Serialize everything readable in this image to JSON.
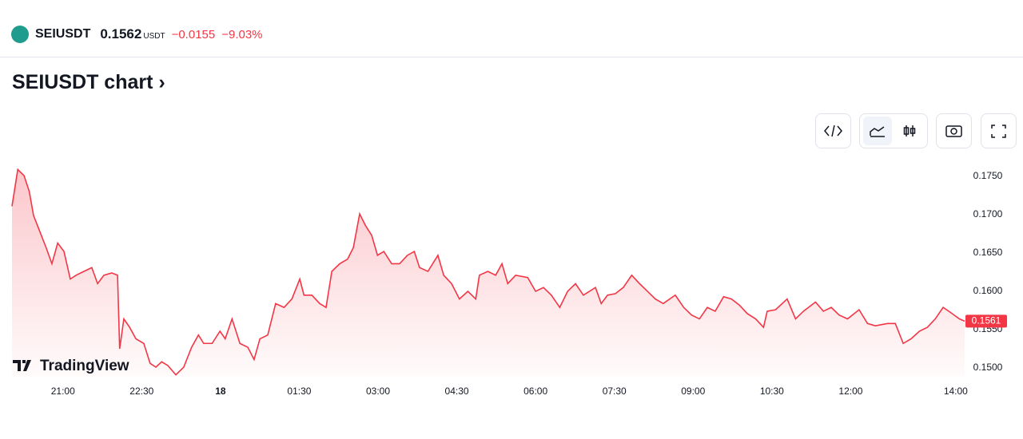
{
  "header": {
    "symbol": "SEIUSDT",
    "price": "0.1562",
    "currency": "USDT",
    "change": "−0.0155",
    "change_pct": "−9.03%"
  },
  "section_title": "SEIUSDT chart",
  "watermark": "TradingView",
  "chart_data": {
    "type": "area",
    "color": "#f23645",
    "x": [
      20.03,
      20.14,
      20.26,
      20.36,
      20.44,
      20.56,
      20.68,
      20.79,
      20.9,
      21.02,
      21.14,
      21.25,
      21.4,
      21.55,
      21.66,
      21.78,
      21.93,
      22.04,
      22.08,
      22.16,
      22.27,
      22.39,
      22.54,
      22.66,
      22.77,
      22.88,
      23.0,
      23.15,
      23.3,
      23.45,
      23.58,
      23.68,
      23.84,
      23.99,
      24.09,
      24.22,
      24.37,
      24.52,
      24.64,
      24.75,
      24.9,
      25.05,
      25.21,
      25.36,
      25.51,
      25.59,
      25.74,
      25.89,
      26.01,
      26.12,
      26.27,
      26.42,
      26.53,
      26.65,
      26.76,
      26.88,
      26.99,
      27.11,
      27.26,
      27.41,
      27.56,
      27.69,
      27.79,
      27.95,
      28.14,
      28.25,
      28.4,
      28.55,
      28.71,
      28.86,
      28.93,
      29.09,
      29.24,
      29.36,
      29.47,
      29.62,
      29.85,
      30.0,
      30.15,
      30.3,
      30.46,
      30.61,
      30.76,
      30.91,
      31.14,
      31.25,
      31.37,
      31.52,
      31.67,
      31.83,
      31.98,
      32.13,
      32.28,
      32.43,
      32.66,
      32.82,
      32.97,
      33.12,
      33.27,
      33.42,
      33.58,
      33.73,
      33.88,
      34.03,
      34.19,
      34.34,
      34.41,
      34.57,
      34.79,
      34.95,
      35.1,
      35.33,
      35.48,
      35.63,
      35.78,
      35.94,
      36.16,
      36.32,
      36.47,
      36.7,
      36.85,
      37.0,
      37.15,
      37.31,
      37.46,
      37.61,
      37.76,
      37.91,
      38.07,
      38.17
    ],
    "values": [
      0.1711,
      0.1759,
      0.1751,
      0.173,
      0.1699,
      0.1678,
      0.1657,
      0.1636,
      0.1663,
      0.1652,
      0.1616,
      0.1621,
      0.1626,
      0.1631,
      0.161,
      0.1621,
      0.1624,
      0.1621,
      0.1525,
      0.1564,
      0.1553,
      0.1538,
      0.1532,
      0.1506,
      0.1501,
      0.1508,
      0.1503,
      0.1491,
      0.1501,
      0.1527,
      0.1543,
      0.1532,
      0.1532,
      0.1548,
      0.1538,
      0.1564,
      0.1532,
      0.1527,
      0.1511,
      0.1538,
      0.1543,
      0.1584,
      0.1579,
      0.159,
      0.1616,
      0.1595,
      0.1595,
      0.1584,
      0.1579,
      0.1626,
      0.1636,
      0.1642,
      0.1657,
      0.1701,
      0.1686,
      0.1673,
      0.1647,
      0.1652,
      0.1636,
      0.1636,
      0.1647,
      0.1652,
      0.1631,
      0.1626,
      0.1647,
      0.1621,
      0.161,
      0.159,
      0.16,
      0.159,
      0.1621,
      0.1626,
      0.1621,
      0.1636,
      0.161,
      0.1621,
      0.1618,
      0.16,
      0.1605,
      0.1595,
      0.1579,
      0.16,
      0.161,
      0.1595,
      0.1605,
      0.1584,
      0.1595,
      0.1597,
      0.1605,
      0.1621,
      0.161,
      0.16,
      0.159,
      0.1584,
      0.1595,
      0.1579,
      0.1569,
      0.1564,
      0.1579,
      0.1574,
      0.1593,
      0.159,
      0.1582,
      0.1571,
      0.1564,
      0.1553,
      0.1574,
      0.1576,
      0.159,
      0.1564,
      0.1574,
      0.1586,
      0.1574,
      0.1579,
      0.1569,
      0.1564,
      0.1576,
      0.1558,
      0.1555,
      0.1558,
      0.1558,
      0.1532,
      0.1538,
      0.1548,
      0.1553,
      0.1564,
      0.1579,
      0.1572,
      0.1564,
      0.1561
    ],
    "xlim": [
      20.03,
      38.17
    ],
    "ylim": [
      0.1488,
      0.1788
    ],
    "xticks": [
      {
        "value": 21,
        "label": "21:00"
      },
      {
        "value": 22.5,
        "label": "22:30"
      },
      {
        "value": 24,
        "label": "18"
      },
      {
        "value": 25.5,
        "label": "01:30"
      },
      {
        "value": 27,
        "label": "03:00"
      },
      {
        "value": 28.5,
        "label": "04:30"
      },
      {
        "value": 30,
        "label": "06:00"
      },
      {
        "value": 31.5,
        "label": "07:30"
      },
      {
        "value": 33,
        "label": "09:00"
      },
      {
        "value": 34.5,
        "label": "10:30"
      },
      {
        "value": 36,
        "label": "12:00"
      },
      {
        "value": 38,
        "label": "14:00"
      }
    ],
    "yticks": [
      {
        "value": 0.15,
        "label": "0.1500"
      },
      {
        "value": 0.155,
        "label": "0.1550"
      },
      {
        "value": 0.16,
        "label": "0.1600"
      },
      {
        "value": 0.165,
        "label": "0.1650"
      },
      {
        "value": 0.17,
        "label": "0.1700"
      },
      {
        "value": 0.175,
        "label": "0.1750"
      }
    ]
  }
}
